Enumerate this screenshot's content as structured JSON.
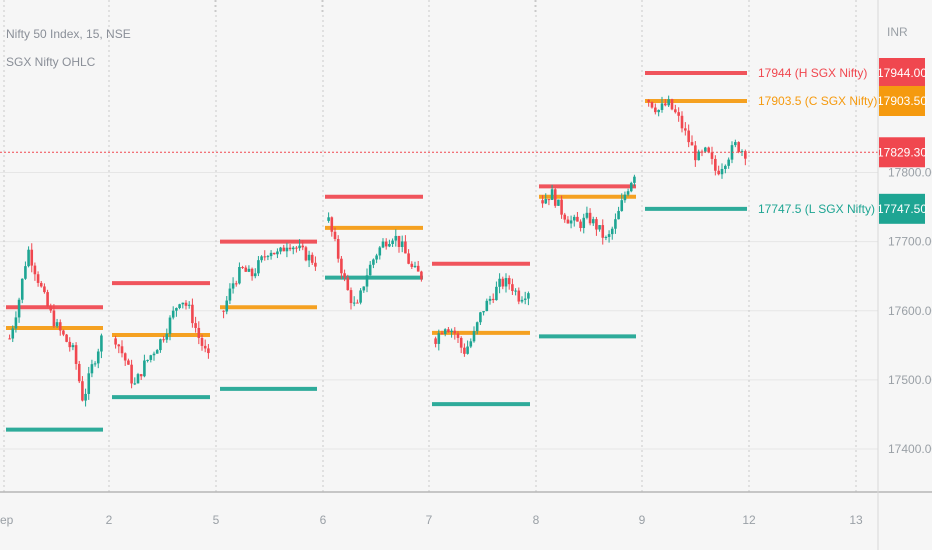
{
  "legend": {
    "title": "Nifty 50 Index, 15, NSE",
    "indicator": "SGX Nifty OHLC"
  },
  "currency": "INR",
  "colors": {
    "high": "#f0474f",
    "close": "#f59a0f",
    "low": "#1ea593",
    "up": "#1ea593",
    "down": "#f0474f",
    "current": "#f0474f"
  },
  "chart_data": {
    "type": "candlestick",
    "ylim": [
      17335,
      17990
    ],
    "y_ticks": [
      17400,
      17500,
      17600,
      17700,
      17800
    ],
    "y_tick_labels": [
      "17400.00",
      "17500.00",
      "17600.00",
      "17700.00",
      "17800.00"
    ],
    "x_ticks": [
      "ep",
      "2",
      "5",
      "6",
      "7",
      "8",
      "9",
      "12",
      "13"
    ],
    "current_price": 17829.3,
    "sessions": [
      {
        "start": "Sep 1",
        "sgx_high": 17605,
        "sgx_close": 17575,
        "sgx_low": 17428,
        "path": [
          17560,
          17615,
          17690,
          17650,
          17610,
          17580,
          17560,
          17540,
          17470,
          17520,
          17560
        ],
        "points": 30
      },
      {
        "start": "Sep 2",
        "sgx_high": 17640,
        "sgx_close": 17565,
        "sgx_low": 17475,
        "path": [
          17560,
          17530,
          17490,
          17520,
          17540,
          17560,
          17590,
          17620,
          17600,
          17560,
          17530
        ],
        "points": 30
      },
      {
        "start": "Sep 5",
        "sgx_high": 17700,
        "sgx_close": 17605,
        "sgx_low": 17487,
        "path": [
          17600,
          17640,
          17660,
          17650,
          17670,
          17690,
          17680,
          17700,
          17690,
          17680,
          17670
        ],
        "points": 30
      },
      {
        "start": "Sep 6",
        "sgx_high": 17765,
        "sgx_close": 17720,
        "sgx_low": 17648,
        "path": [
          17730,
          17680,
          17630,
          17600,
          17650,
          17680,
          17700,
          17710,
          17690,
          17660,
          17650
        ],
        "points": 30
      },
      {
        "start": "Sep 7",
        "sgx_high": 17668,
        "sgx_close": 17568,
        "sgx_low": 17465,
        "path": [
          17560,
          17580,
          17570,
          17540,
          17560,
          17600,
          17620,
          17640,
          17640,
          17620,
          17630
        ],
        "points": 30
      },
      {
        "start": "Sep 8",
        "sgx_high": 17780,
        "sgx_close": 17765,
        "sgx_low": 17563,
        "path": [
          17760,
          17770,
          17745,
          17730,
          17725,
          17735,
          17720,
          17700,
          17730,
          17770,
          17800
        ],
        "points": 30
      },
      {
        "start": "Sep 9",
        "sgx_high": 17944,
        "sgx_close": 17903.5,
        "sgx_low": 17747.5,
        "path": [
          17905,
          17890,
          17900,
          17880,
          17850,
          17820,
          17830,
          17800,
          17820,
          17840,
          17829
        ],
        "points": 30
      }
    ],
    "last_session_labels": [
      {
        "level": "high",
        "text": "17944  (H SGX Nifty)",
        "tag": "17944.00",
        "value": 17944
      },
      {
        "level": "close",
        "text": "17903.5  (C SGX Nifty)",
        "tag": "17903.50",
        "value": 17903.5
      },
      {
        "level": "low",
        "text": "17747.5  (L SGX Nifty)",
        "tag": "17747.50",
        "value": 17747.5
      }
    ],
    "current_tag": "17829.30"
  }
}
